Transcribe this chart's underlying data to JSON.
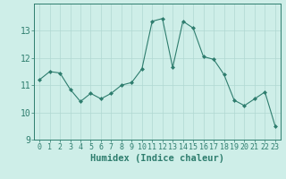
{
  "x": [
    0,
    1,
    2,
    3,
    4,
    5,
    6,
    7,
    8,
    9,
    10,
    11,
    12,
    13,
    14,
    15,
    16,
    17,
    18,
    19,
    20,
    21,
    22,
    23
  ],
  "y": [
    11.2,
    11.5,
    11.45,
    10.85,
    10.4,
    10.7,
    10.5,
    10.7,
    11.0,
    11.1,
    11.6,
    13.35,
    13.45,
    11.65,
    13.35,
    13.1,
    12.05,
    11.95,
    11.4,
    10.45,
    10.25,
    10.5,
    10.75,
    9.5
  ],
  "title": "",
  "xlabel": "Humidex (Indice chaleur)",
  "ylabel": "",
  "xlim": [
    -0.5,
    23.5
  ],
  "ylim": [
    9,
    14
  ],
  "yticks": [
    9,
    10,
    11,
    12,
    13
  ],
  "xticks": [
    0,
    1,
    2,
    3,
    4,
    5,
    6,
    7,
    8,
    9,
    10,
    11,
    12,
    13,
    14,
    15,
    16,
    17,
    18,
    19,
    20,
    21,
    22,
    23
  ],
  "line_color": "#2e7d6e",
  "marker": "D",
  "marker_size": 2,
  "bg_color": "#ceeee8",
  "grid_color": "#b0d8d2",
  "axis_color": "#2e7d6e",
  "tick_label_color": "#2e7d6e",
  "xlabel_color": "#2e7d6e",
  "xlabel_fontsize": 7.5,
  "ytick_fontsize": 7,
  "xtick_fontsize": 6
}
